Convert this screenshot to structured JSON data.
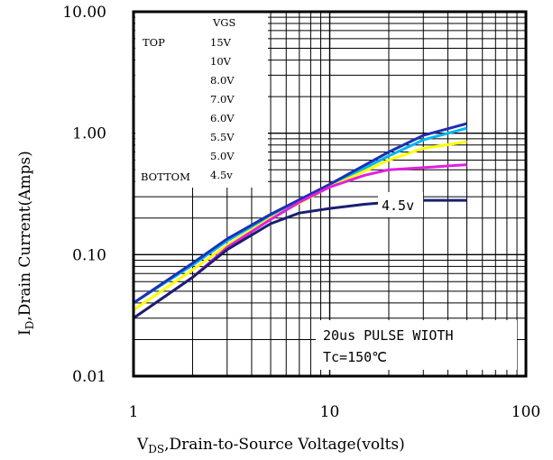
{
  "chart_data": {
    "type": "line",
    "x_scale": "log",
    "y_scale": "log",
    "xlim": [
      1,
      100
    ],
    "ylim": [
      0.01,
      10
    ],
    "grid": true,
    "ylabel_main": "I",
    "ylabel_sub": "D",
    "ylabel_rest": ",Drain Current(Amps)",
    "xlabel_main": "V",
    "xlabel_sub": "DS",
    "xlabel_rest": ",Drain-to-Source Voltage(volts)",
    "x_ticks": [
      {
        "value": 1,
        "label": "1"
      },
      {
        "value": 10,
        "label": "10"
      },
      {
        "value": 100,
        "label": "100"
      }
    ],
    "y_ticks": [
      {
        "value": 0.01,
        "label": "0.01"
      },
      {
        "value": 0.1,
        "label": "0.10"
      },
      {
        "value": 1,
        "label": "1.00"
      },
      {
        "value": 10,
        "label": "10.00"
      }
    ],
    "legend": {
      "header": "VGS",
      "top_label": "TOP",
      "bottom_label": "BOTTOM",
      "entries": [
        "15V",
        "10V",
        "8.0V",
        "7.0V",
        "6.0V",
        "5.5V",
        "5.0V",
        "4.5v"
      ]
    },
    "annotation_box": {
      "line1": "20us PULSE WIOTH",
      "line2": "Tc=150℃"
    },
    "curve_label": "4.5v",
    "series": [
      {
        "color": "#00b7ef",
        "x": [
          1,
          2,
          3,
          5,
          10,
          20,
          30,
          50
        ],
        "y": [
          0.04,
          0.082,
          0.13,
          0.21,
          0.37,
          0.65,
          0.88,
          1.1
        ]
      },
      {
        "color": "#1e2fb3",
        "x": [
          1,
          2,
          3,
          5,
          10,
          20,
          30,
          50
        ],
        "y": [
          0.04,
          0.085,
          0.135,
          0.215,
          0.38,
          0.7,
          0.96,
          1.2
        ]
      },
      {
        "color": "#ffff00",
        "x": [
          1,
          2,
          3,
          5,
          10,
          20,
          30,
          50
        ],
        "y": [
          0.035,
          0.075,
          0.12,
          0.2,
          0.36,
          0.6,
          0.75,
          0.85
        ]
      },
      {
        "color": "#e020e0",
        "x": [
          1,
          2,
          3,
          5,
          7,
          10,
          15,
          20,
          30,
          50
        ],
        "y": [
          0.03,
          0.065,
          0.115,
          0.195,
          0.27,
          0.36,
          0.45,
          0.5,
          0.52,
          0.55
        ]
      },
      {
        "color": "#1a1f6e",
        "x": [
          1,
          2,
          3,
          5,
          7,
          10,
          15,
          20,
          30,
          50
        ],
        "y": [
          0.03,
          0.065,
          0.11,
          0.18,
          0.22,
          0.24,
          0.26,
          0.27,
          0.28,
          0.28
        ]
      }
    ]
  }
}
